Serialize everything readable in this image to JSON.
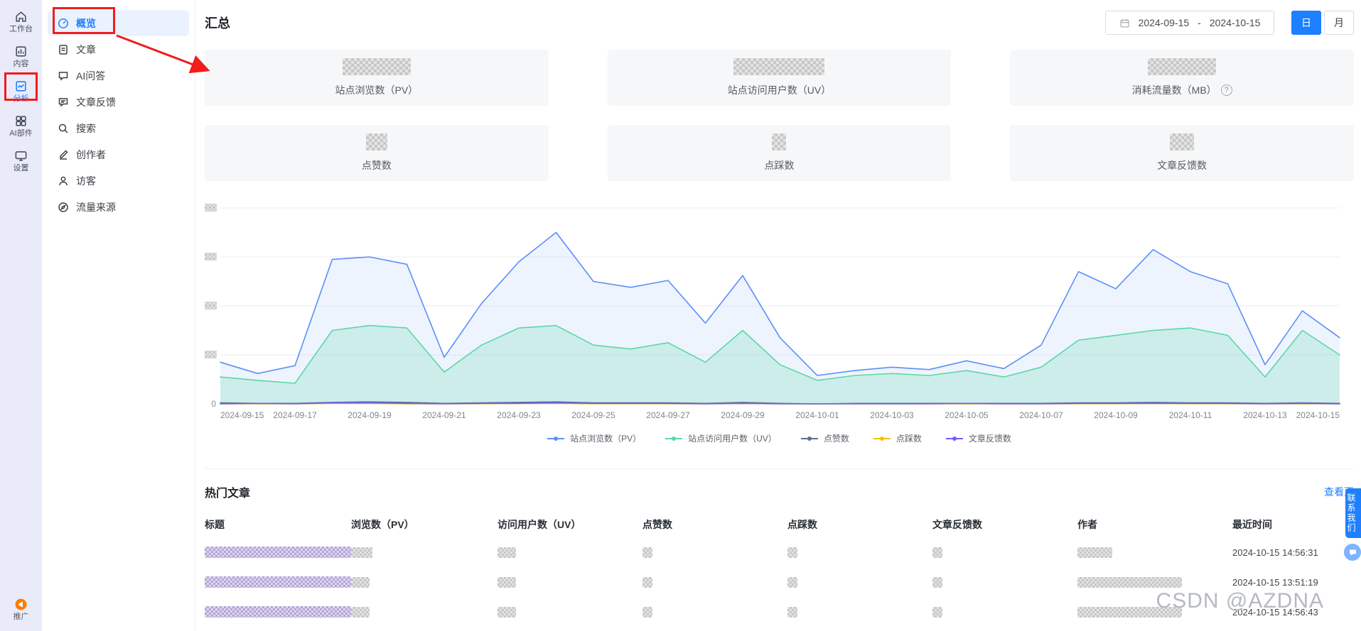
{
  "left_rail": {
    "items": [
      {
        "label": "工作台",
        "icon": "home-icon",
        "active": false
      },
      {
        "label": "内容",
        "icon": "content-icon",
        "active": false
      },
      {
        "label": "分析",
        "icon": "analysis-icon",
        "active": true
      },
      {
        "label": "AI部件",
        "icon": "ai-widgets-icon",
        "active": false
      },
      {
        "label": "设置",
        "icon": "settings-icon",
        "active": false
      }
    ],
    "bottom_item": {
      "label": "推广",
      "icon": "promo-icon"
    }
  },
  "sidebar": {
    "items": [
      {
        "label": "概览",
        "icon": "gauge-icon",
        "active": true
      },
      {
        "label": "文章",
        "icon": "document-icon",
        "active": false
      },
      {
        "label": "AI问答",
        "icon": "chat-icon",
        "active": false
      },
      {
        "label": "文章反馈",
        "icon": "feedback-icon",
        "active": false
      },
      {
        "label": "搜索",
        "icon": "search-icon",
        "active": false
      },
      {
        "label": "创作者",
        "icon": "pen-icon",
        "active": false
      },
      {
        "label": "访客",
        "icon": "person-icon",
        "active": false
      },
      {
        "label": "流量来源",
        "icon": "compass-icon",
        "active": false
      }
    ]
  },
  "header": {
    "title": "汇总",
    "date_range": {
      "start": "2024-09-15",
      "separator": "-",
      "end": "2024-10-15"
    },
    "granularity": {
      "day": "日",
      "month": "月",
      "selected": "日"
    }
  },
  "icons": {
    "help": "?"
  },
  "stats": {
    "cards": [
      {
        "label": "站点浏览数（PV）",
        "value_masked": true
      },
      {
        "label": "站点访问用户数（UV）",
        "value_masked": true
      },
      {
        "label": "消耗流量数（MB）",
        "value_masked": true,
        "has_info_icon": true
      },
      {
        "label": "点赞数",
        "value_masked": true
      },
      {
        "label": "点踩数",
        "value_masked": true
      },
      {
        "label": "文章反馈数",
        "value_masked": true
      }
    ]
  },
  "chart_data": {
    "type": "line",
    "x": [
      "2024-09-15",
      "2024-09-16",
      "2024-09-17",
      "2024-09-18",
      "2024-09-19",
      "2024-09-20",
      "2024-09-21",
      "2024-09-22",
      "2024-09-23",
      "2024-09-24",
      "2024-09-25",
      "2024-09-26",
      "2024-09-27",
      "2024-09-28",
      "2024-09-29",
      "2024-09-30",
      "2024-10-01",
      "2024-10-02",
      "2024-10-03",
      "2024-10-04",
      "2024-10-05",
      "2024-10-06",
      "2024-10-07",
      "2024-10-08",
      "2024-10-09",
      "2024-10-10",
      "2024-10-11",
      "2024-10-12",
      "2024-10-13",
      "2024-10-14",
      "2024-10-15"
    ],
    "x_tick_every": 2,
    "series": [
      {
        "name": "站点浏览数（PV）",
        "color": "#5B8FF9",
        "area": true,
        "area_opacity": 0.1,
        "values": [
          85,
          62,
          78,
          295,
          300,
          285,
          95,
          205,
          290,
          350,
          250,
          238,
          252,
          165,
          262,
          135,
          58,
          68,
          75,
          70,
          88,
          72,
          120,
          270,
          235,
          315,
          270,
          245,
          80,
          190,
          135
        ]
      },
      {
        "name": "站点访问用户数（UV）",
        "color": "#5AD8A6",
        "area": true,
        "area_opacity": 0.22,
        "values": [
          55,
          48,
          42,
          150,
          160,
          155,
          65,
          120,
          155,
          160,
          120,
          112,
          125,
          85,
          150,
          80,
          48,
          58,
          62,
          58,
          68,
          55,
          75,
          130,
          140,
          150,
          155,
          140,
          55,
          150,
          100
        ]
      },
      {
        "name": "点赞数",
        "color": "#5D7092",
        "area": false,
        "values": [
          2,
          1,
          1,
          3,
          4,
          3,
          1,
          2,
          3,
          4,
          2,
          2,
          2,
          1,
          3,
          1,
          0,
          1,
          1,
          1,
          1,
          1,
          1,
          2,
          2,
          3,
          2,
          2,
          1,
          2,
          1
        ]
      },
      {
        "name": "点踩数",
        "color": "#F6BD16",
        "area": false,
        "values": [
          0,
          0,
          0,
          1,
          1,
          0,
          0,
          0,
          1,
          1,
          0,
          0,
          0,
          0,
          1,
          0,
          0,
          0,
          0,
          0,
          0,
          0,
          0,
          0,
          0,
          1,
          0,
          0,
          0,
          0,
          0
        ]
      },
      {
        "name": "文章反馈数",
        "color": "#6F5EF9",
        "area": false,
        "values": [
          0,
          1,
          0,
          2,
          2,
          1,
          0,
          1,
          1,
          2,
          1,
          1,
          1,
          0,
          1,
          0,
          0,
          0,
          0,
          0,
          1,
          0,
          0,
          1,
          1,
          1,
          1,
          1,
          0,
          1,
          0
        ]
      }
    ],
    "ylim": [
      0,
      400
    ],
    "y_ticks": [
      0,
      100,
      200,
      300,
      400
    ],
    "y_zero_label": "0",
    "y_tick_labels_masked": true,
    "grid": "horizontal",
    "legend_position": "bottom",
    "title": "",
    "xlabel": "",
    "ylabel": ""
  },
  "hot_articles": {
    "title": "热门文章",
    "view_more": "查看更",
    "columns": [
      "标题",
      "浏览数（PV）",
      "访问用户数（UV）",
      "点赞数",
      "点踩数",
      "文章反馈数",
      "作者",
      "最近时间"
    ],
    "rows": [
      {
        "title_masked": true,
        "values_masked": true,
        "author_masked": true,
        "time": "2024-10-15 14:56:31"
      },
      {
        "title_masked": true,
        "values_masked": true,
        "author_masked": true,
        "time": "2024-10-15 13:51:19"
      },
      {
        "title_masked": true,
        "values_masked": true,
        "author_masked": true,
        "time": "2024-10-15 14:56:43"
      }
    ]
  },
  "floating": {
    "contact_label": "联系我们"
  },
  "watermark": {
    "text": "CSDN @AZDNA"
  },
  "colors": {
    "accent_blue": "#1e80ff",
    "annotation_red": "#f11c1c",
    "rail_bg": "#e9ebf9",
    "card_bg": "#f6f7f9",
    "sidebar_active_bg": "#eaf2ff"
  }
}
